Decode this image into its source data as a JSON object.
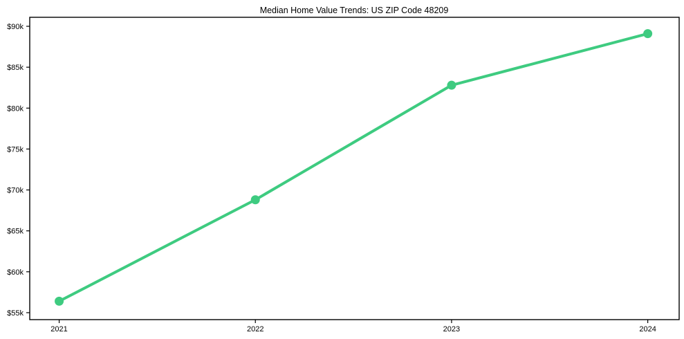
{
  "chart_data": {
    "type": "line",
    "title": "Median Home Value Trends: US ZIP Code 48209",
    "xlabel": "",
    "ylabel": "",
    "x": [
      2021,
      2022,
      2023,
      2024
    ],
    "x_labels": [
      "2021",
      "2022",
      "2023",
      "2024"
    ],
    "series": [
      {
        "name": "Median Home Value",
        "values": [
          56400,
          68800,
          82800,
          89100
        ]
      }
    ],
    "yticks": [
      {
        "value": 55000,
        "label": "$55k"
      },
      {
        "value": 60000,
        "label": "$60k"
      },
      {
        "value": 65000,
        "label": "$65k"
      },
      {
        "value": 70000,
        "label": "$70k"
      },
      {
        "value": 75000,
        "label": "$75k"
      },
      {
        "value": 80000,
        "label": "$80k"
      },
      {
        "value": 85000,
        "label": "$85k"
      },
      {
        "value": 90000,
        "label": "$90k"
      }
    ],
    "xlim": [
      2020.85,
      2024.16
    ],
    "ylim": [
      54150,
      91100
    ],
    "grid": false,
    "legend_position": "none",
    "colors": {
      "line": "#3ecb80",
      "marker": "#3ecb80",
      "axis": "#000000",
      "background": "#ffffff",
      "text": "#000000"
    }
  }
}
